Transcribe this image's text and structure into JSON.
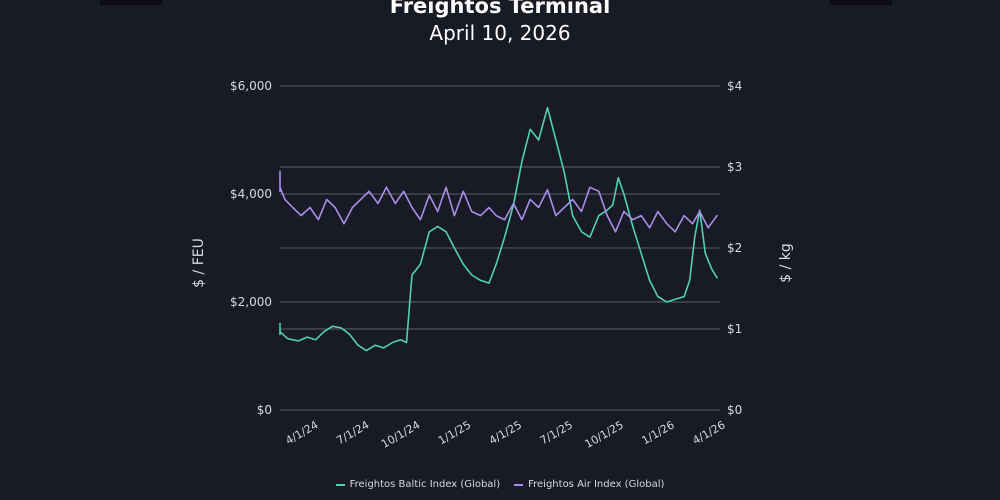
{
  "header": {
    "title": "Freightos Terminal",
    "date": "April 10, 2026"
  },
  "colors": {
    "background": "#181a25",
    "grid": "#5c5e68",
    "axis_text": "#d9d9df",
    "fbx": "#4fd1b4",
    "fax": "#a98ee8"
  },
  "chart_data": {
    "type": "line",
    "x_ticks": [
      "4/1/24",
      "7/1/24",
      "10/1/24",
      "1/1/25",
      "4/1/25",
      "7/1/25",
      "10/1/25",
      "1/1/26",
      "4/1/26"
    ],
    "left_axis": {
      "label": "$ / FEU",
      "ticks": [
        "$6,000",
        "$4,000",
        "$2,000",
        "$0"
      ],
      "ylim": [
        0,
        6000
      ]
    },
    "right_axis": {
      "label": "$ / kg",
      "ticks": [
        "$4",
        "$3",
        "$2",
        "$1",
        "$0"
      ],
      "ylim": [
        0,
        4
      ]
    },
    "grid": true,
    "legend_position": "bottom-center",
    "series": [
      {
        "name": "Freightos Baltic Index (Global)",
        "axis": "left",
        "color": "#4fd1b4",
        "points": [
          [
            "2024-01-01",
            1600
          ],
          [
            "2024-01-15",
            1450
          ],
          [
            "2024-02-01",
            1400
          ],
          [
            "2024-02-15",
            1450
          ],
          [
            "2024-03-01",
            1320
          ],
          [
            "2024-03-20",
            1280
          ],
          [
            "2024-04-05",
            1350
          ],
          [
            "2024-04-20",
            1300
          ],
          [
            "2024-05-05",
            1450
          ],
          [
            "2024-05-20",
            1550
          ],
          [
            "2024-06-05",
            1520
          ],
          [
            "2024-06-20",
            1400
          ],
          [
            "2024-07-05",
            1200
          ],
          [
            "2024-07-20",
            1100
          ],
          [
            "2024-08-05",
            1200
          ],
          [
            "2024-08-20",
            1150
          ],
          [
            "2024-09-05",
            1250
          ],
          [
            "2024-09-20",
            1300
          ],
          [
            "2024-09-30",
            1250
          ],
          [
            "2024-10-10",
            2500
          ],
          [
            "2024-10-25",
            2700
          ],
          [
            "2024-11-10",
            3300
          ],
          [
            "2024-11-25",
            3400
          ],
          [
            "2024-12-10",
            3300
          ],
          [
            "2024-12-25",
            3000
          ],
          [
            "2025-01-10",
            2700
          ],
          [
            "2025-01-25",
            2500
          ],
          [
            "2025-02-10",
            2400
          ],
          [
            "2025-02-25",
            2350
          ],
          [
            "2025-03-10",
            2700
          ],
          [
            "2025-03-25",
            3200
          ],
          [
            "2025-04-10",
            3800
          ],
          [
            "2025-04-25",
            4600
          ],
          [
            "2025-05-10",
            5200
          ],
          [
            "2025-05-25",
            5000
          ],
          [
            "2025-06-10",
            5600
          ],
          [
            "2025-06-25",
            5000
          ],
          [
            "2025-07-10",
            4400
          ],
          [
            "2025-07-25",
            3600
          ],
          [
            "2025-08-10",
            3300
          ],
          [
            "2025-08-25",
            3200
          ],
          [
            "2025-09-10",
            3600
          ],
          [
            "2025-09-25",
            3700
          ],
          [
            "2025-10-05",
            3800
          ],
          [
            "2025-10-15",
            4300
          ],
          [
            "2025-10-25",
            4000
          ],
          [
            "2025-11-10",
            3400
          ],
          [
            "2025-11-25",
            2900
          ],
          [
            "2025-12-10",
            2400
          ],
          [
            "2025-12-25",
            2100
          ],
          [
            "2026-01-10",
            2000
          ],
          [
            "2026-01-25",
            2050
          ],
          [
            "2026-02-10",
            2100
          ],
          [
            "2026-02-20",
            2400
          ],
          [
            "2026-03-01",
            3200
          ],
          [
            "2026-03-10",
            3700
          ],
          [
            "2026-03-20",
            2900
          ],
          [
            "2026-04-01",
            2600
          ],
          [
            "2026-04-10",
            2450
          ]
        ]
      },
      {
        "name": "Freightos Air Index (Global)",
        "axis": "right",
        "color": "#a98ee8",
        "points": [
          [
            "2024-01-01",
            2.95
          ],
          [
            "2024-01-10",
            2.75
          ],
          [
            "2024-01-25",
            2.7
          ],
          [
            "2024-02-10",
            2.75
          ],
          [
            "2024-02-25",
            2.6
          ],
          [
            "2024-03-10",
            2.5
          ],
          [
            "2024-03-25",
            2.4
          ],
          [
            "2024-04-10",
            2.5
          ],
          [
            "2024-04-25",
            2.35
          ],
          [
            "2024-05-10",
            2.6
          ],
          [
            "2024-05-25",
            2.5
          ],
          [
            "2024-06-10",
            2.3
          ],
          [
            "2024-06-25",
            2.5
          ],
          [
            "2024-07-10",
            2.6
          ],
          [
            "2024-07-25",
            2.7
          ],
          [
            "2024-08-10",
            2.55
          ],
          [
            "2024-08-25",
            2.75
          ],
          [
            "2024-09-10",
            2.55
          ],
          [
            "2024-09-25",
            2.7
          ],
          [
            "2024-10-10",
            2.5
          ],
          [
            "2024-10-25",
            2.35
          ],
          [
            "2024-11-10",
            2.65
          ],
          [
            "2024-11-25",
            2.45
          ],
          [
            "2024-12-10",
            2.75
          ],
          [
            "2024-12-25",
            2.4
          ],
          [
            "2025-01-10",
            2.7
          ],
          [
            "2025-01-25",
            2.45
          ],
          [
            "2025-02-10",
            2.4
          ],
          [
            "2025-02-25",
            2.5
          ],
          [
            "2025-03-10",
            2.4
          ],
          [
            "2025-03-25",
            2.35
          ],
          [
            "2025-04-10",
            2.55
          ],
          [
            "2025-04-25",
            2.35
          ],
          [
            "2025-05-10",
            2.6
          ],
          [
            "2025-05-25",
            2.5
          ],
          [
            "2025-06-10",
            2.72
          ],
          [
            "2025-06-25",
            2.4
          ],
          [
            "2025-07-10",
            2.5
          ],
          [
            "2025-07-25",
            2.6
          ],
          [
            "2025-08-10",
            2.45
          ],
          [
            "2025-08-25",
            2.75
          ],
          [
            "2025-09-10",
            2.7
          ],
          [
            "2025-09-25",
            2.4
          ],
          [
            "2025-10-10",
            2.2
          ],
          [
            "2025-10-25",
            2.45
          ],
          [
            "2025-11-10",
            2.35
          ],
          [
            "2025-11-25",
            2.4
          ],
          [
            "2025-12-10",
            2.25
          ],
          [
            "2025-12-25",
            2.45
          ],
          [
            "2026-01-10",
            2.3
          ],
          [
            "2026-01-25",
            2.2
          ],
          [
            "2026-02-10",
            2.4
          ],
          [
            "2026-02-25",
            2.3
          ],
          [
            "2026-03-10",
            2.45
          ],
          [
            "2026-03-25",
            2.25
          ],
          [
            "2026-04-10",
            2.4
          ]
        ]
      }
    ]
  }
}
